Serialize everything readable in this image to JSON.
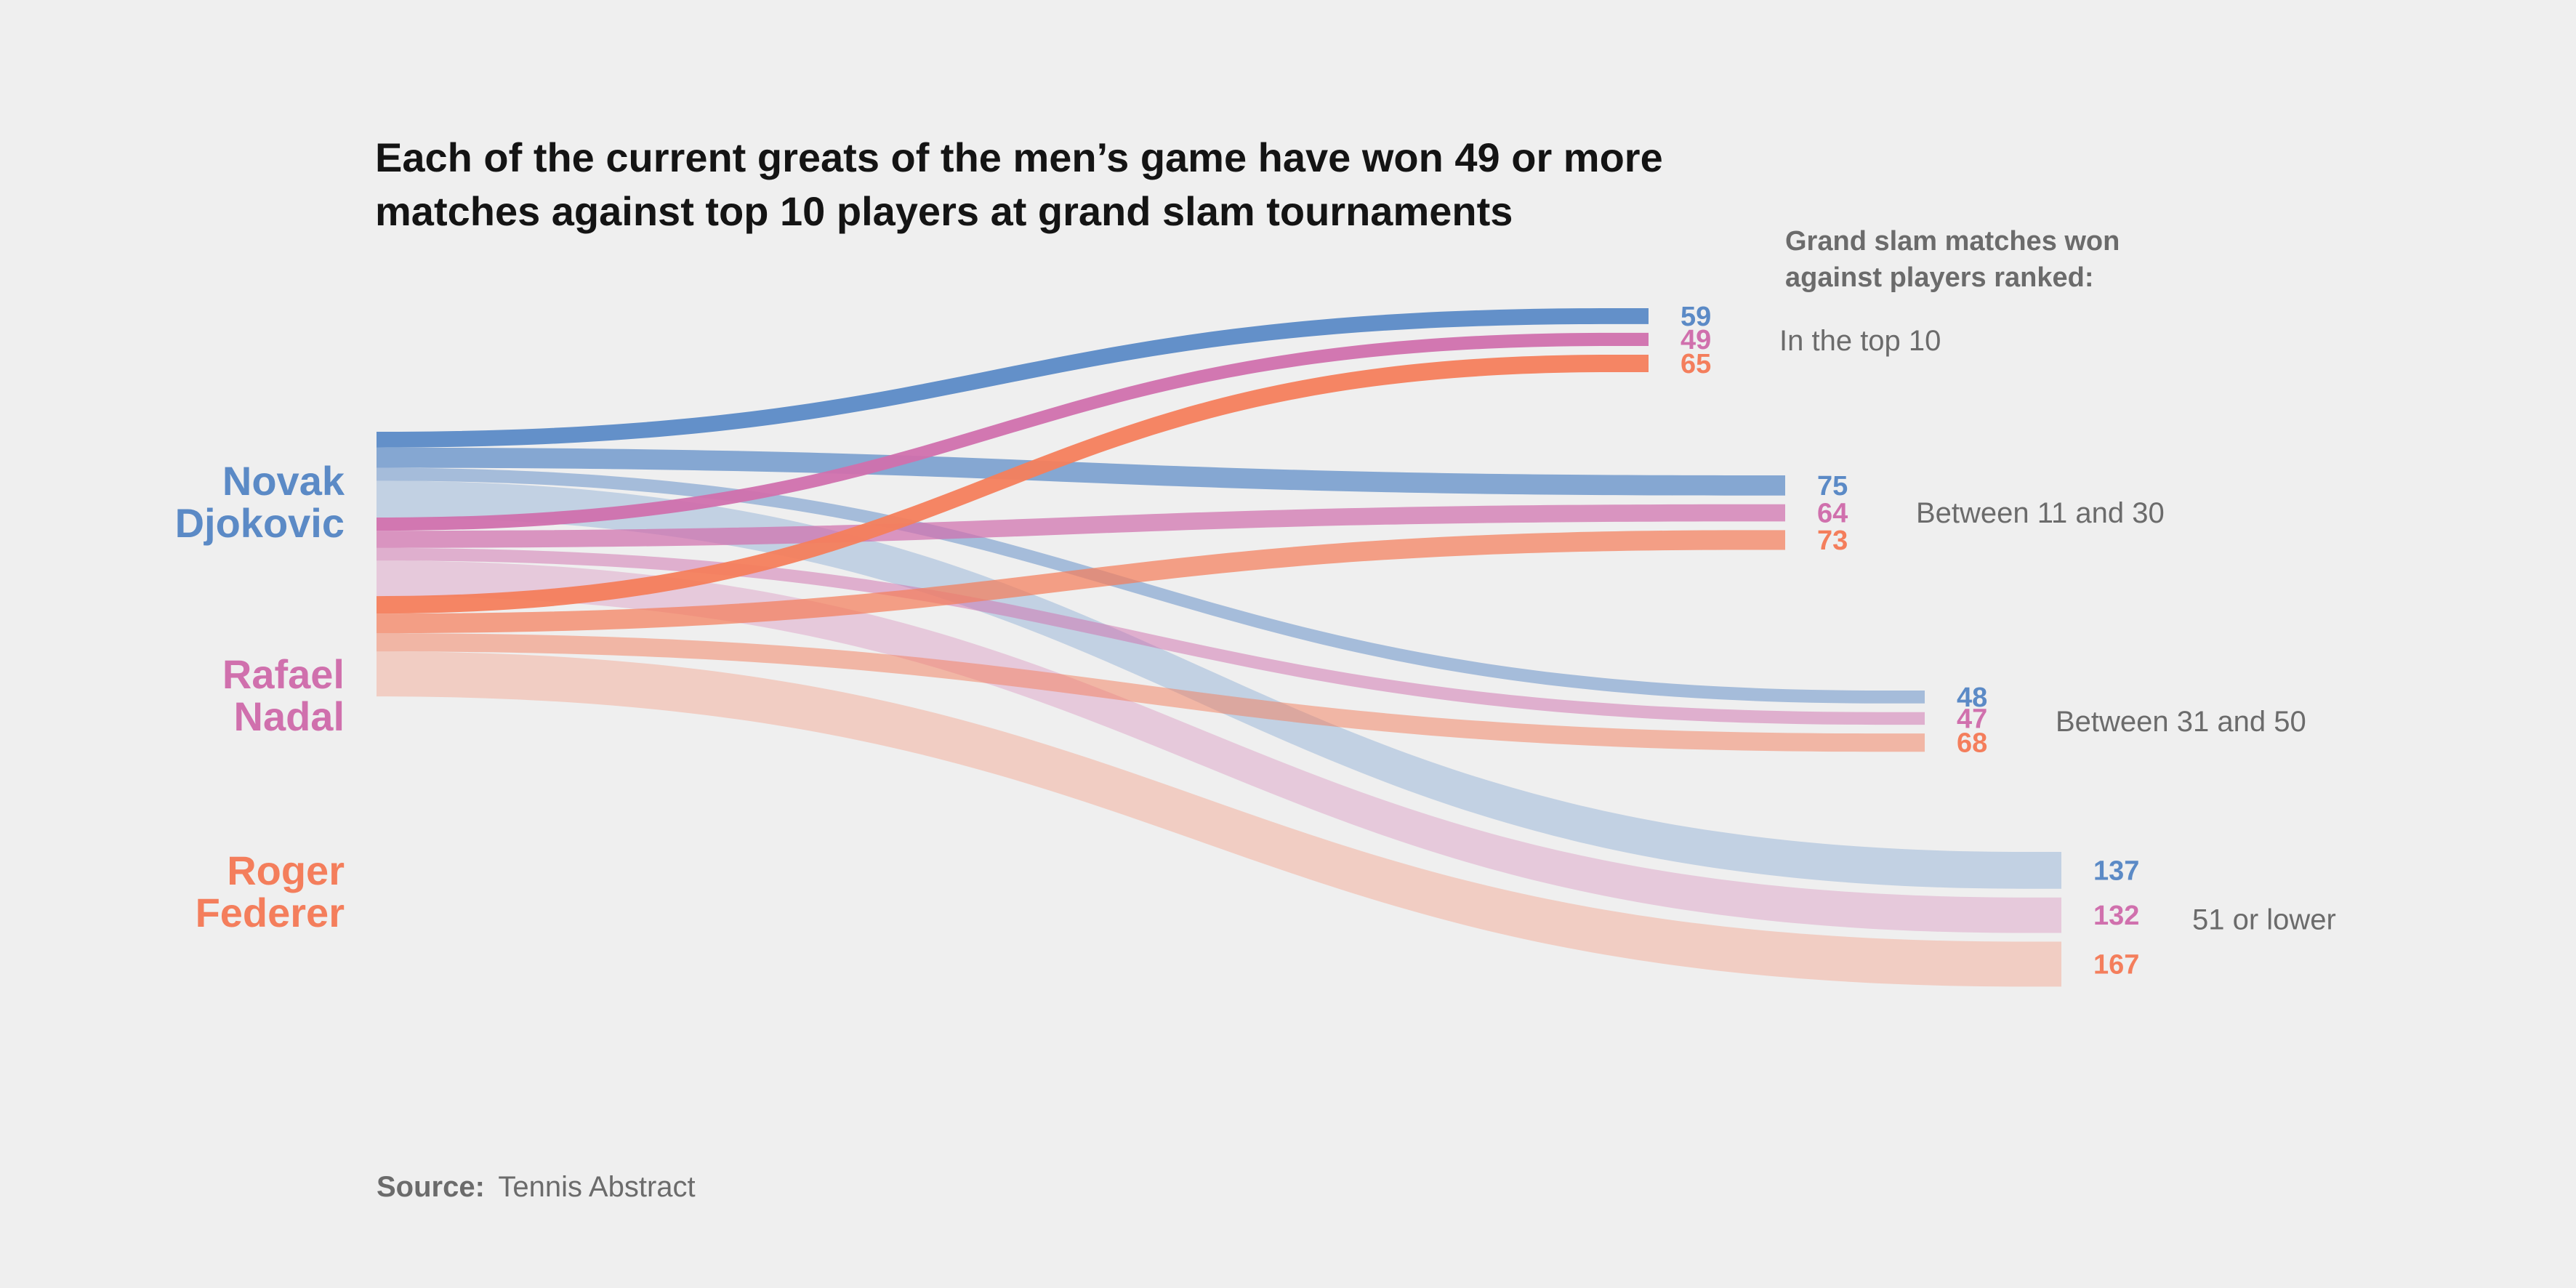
{
  "title_lines": [
    "Each of the current greats of the men’s game have won 49 or more",
    "matches against top 10 players at grand slam tournaments"
  ],
  "heading_lines": [
    "Grand slam matches won",
    "against players ranked:"
  ],
  "source_label": "Source:",
  "source_text": "Tennis Abstract",
  "colors": {
    "Novak Djokovic": "#5b8ac6",
    "Rafael Nadal": "#d070ad",
    "Roger Federer": "#f47e5c"
  },
  "chart_data": {
    "type": "sankey",
    "players": [
      {
        "name": "Novak Djokovic",
        "label_lines": [
          "Novak",
          "Djokovic"
        ]
      },
      {
        "name": "Rafael Nadal",
        "label_lines": [
          "Rafael",
          "Nadal"
        ]
      },
      {
        "name": "Roger Federer",
        "label_lines": [
          "Roger",
          "Federer"
        ]
      }
    ],
    "categories": [
      "In the top 10",
      "Between 11 and 30",
      "Between 31 and 50",
      "51 or lower"
    ],
    "series": [
      {
        "name": "Novak Djokovic",
        "values": [
          59,
          75,
          48,
          137
        ]
      },
      {
        "name": "Rafael Nadal",
        "values": [
          49,
          64,
          47,
          132
        ]
      },
      {
        "name": "Roger Federer",
        "values": [
          65,
          73,
          68,
          167
        ]
      }
    ]
  }
}
